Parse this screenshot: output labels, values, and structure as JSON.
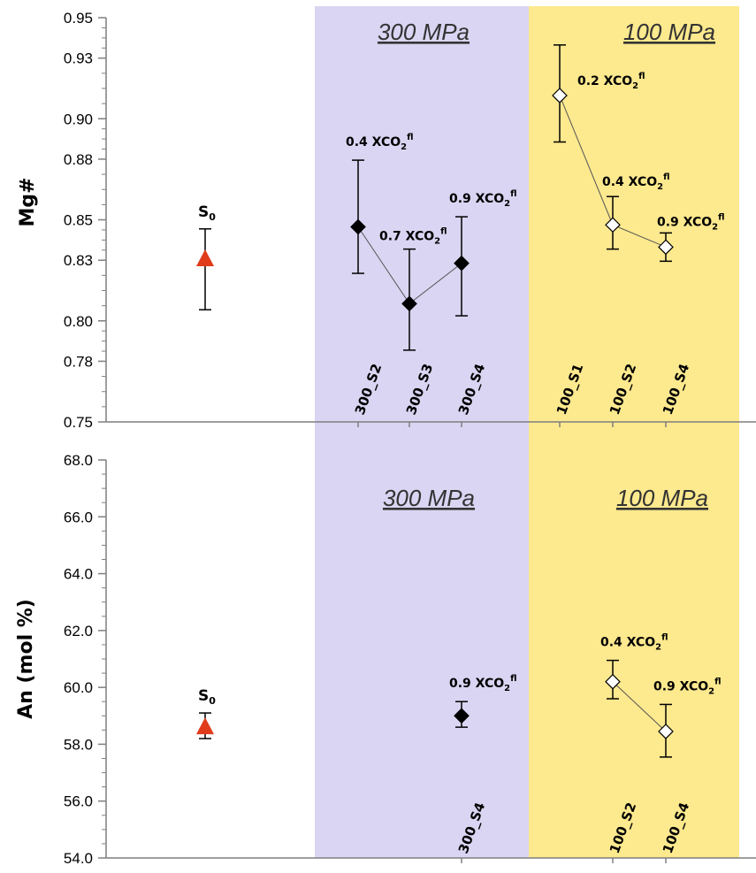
{
  "chart_data": [
    {
      "type": "scatter",
      "title": "",
      "ylabel": "Mg#",
      "xlabel": "",
      "ylim": [
        0.75,
        0.95
      ],
      "yticks": [
        "0.95",
        "0.93",
        "0.90",
        "0.88",
        "0.85",
        "0.83",
        "0.80",
        "0.78",
        "0.75"
      ],
      "ytick_values": [
        0.95,
        0.93,
        0.9,
        0.88,
        0.85,
        0.83,
        0.8,
        0.78,
        0.75
      ],
      "regions": [
        {
          "name": "300 MPa",
          "color": "#d9d5f2"
        },
        {
          "name": "100 MPa",
          "color": "#fde98e"
        }
      ],
      "starting": {
        "label": "S",
        "sub": "0",
        "value": 0.8305,
        "err_low": 0.8055,
        "err_high": 0.8455,
        "color": "#e03c1c"
      },
      "series": [
        {
          "group": "300 MPa",
          "marker": "filled-diamond",
          "points": [
            {
              "sample": "300_S2",
              "value": 0.8465,
              "err_low": 0.8235,
              "err_high": 0.8795,
              "label": "0.4 XCO",
              "label_sub": "2",
              "label_sup": "fl"
            },
            {
              "sample": "300_S3",
              "value": 0.8085,
              "err_low": 0.7855,
              "err_high": 0.8355,
              "label": "0.7 XCO",
              "label_sub": "2",
              "label_sup": "fl"
            },
            {
              "sample": "300_S4",
              "value": 0.8285,
              "err_low": 0.8025,
              "err_high": 0.8515,
              "label": "0.9 XCO",
              "label_sub": "2",
              "label_sup": "fl"
            }
          ]
        },
        {
          "group": "100 MPa",
          "marker": "open-diamond",
          "points": [
            {
              "sample": "100_S1",
              "value": 0.9115,
              "err_low": 0.8885,
              "err_high": 0.9365,
              "label": "0.2 XCO",
              "label_sub": "2",
              "label_sup": "fl"
            },
            {
              "sample": "100_S2",
              "value": 0.8475,
              "err_low": 0.8355,
              "err_high": 0.8615,
              "label": "0.4 XCO",
              "label_sub": "2",
              "label_sup": "fl"
            },
            {
              "sample": "100_S4",
              "value": 0.8365,
              "err_low": 0.8295,
              "err_high": 0.8435,
              "label": "0.9 XCO",
              "label_sub": "2",
              "label_sup": "fl"
            }
          ]
        }
      ]
    },
    {
      "type": "scatter",
      "title": "",
      "ylabel": "An (mol %)",
      "xlabel": "",
      "ylim": [
        54.0,
        68.0
      ],
      "yticks": [
        "68.0",
        "66.0",
        "64.0",
        "62.0",
        "60.0",
        "58.0",
        "56.0",
        "54.0"
      ],
      "ytick_values": [
        68,
        66,
        64,
        62,
        60,
        58,
        56,
        54
      ],
      "regions": [
        {
          "name": "300 MPa",
          "color": "#d9d5f2"
        },
        {
          "name": "100 MPa",
          "color": "#fde98e"
        }
      ],
      "starting": {
        "label": "S",
        "sub": "0",
        "value": 58.6,
        "err_low": 58.2,
        "err_high": 59.1,
        "color": "#e03c1c"
      },
      "series": [
        {
          "group": "300 MPa",
          "marker": "filled-diamond",
          "points": [
            {
              "sample": "300_S4",
              "value": 59.0,
              "err_low": 58.6,
              "err_high": 59.5,
              "label": "0.9 XCO",
              "label_sub": "2",
              "label_sup": "fl"
            }
          ]
        },
        {
          "group": "100 MPa",
          "marker": "open-diamond",
          "points": [
            {
              "sample": "100_S2",
              "value": 60.2,
              "err_low": 59.6,
              "err_high": 60.95,
              "label": "0.4 XCO",
              "label_sub": "2",
              "label_sup": "fl"
            },
            {
              "sample": "100_S4",
              "value": 58.45,
              "err_low": 57.55,
              "err_high": 59.4,
              "label": "0.9 XCO",
              "label_sub": "2",
              "label_sup": "fl"
            }
          ]
        }
      ]
    }
  ]
}
